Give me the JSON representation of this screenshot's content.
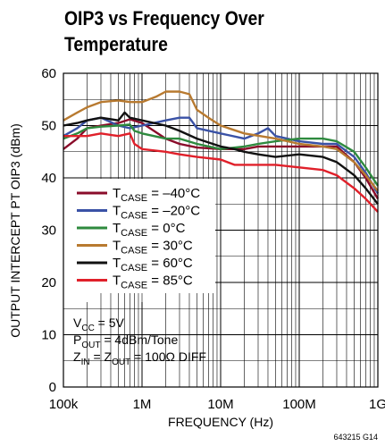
{
  "chart_data": {
    "type": "line",
    "title_lines": [
      "OIP3 vs Frequency Over",
      "Temperature"
    ],
    "xlabel": "FREQUENCY (Hz)",
    "ylabel": "OUTPUT INTERCEPT PT OIP3 (dBm)",
    "xscale": "log",
    "xlim": [
      100000,
      1000000000
    ],
    "ylim": [
      0,
      60
    ],
    "xticks": [
      {
        "value": 100000,
        "label": "100k"
      },
      {
        "value": 1000000,
        "label": "1M"
      },
      {
        "value": 10000000,
        "label": "10M"
      },
      {
        "value": 100000000,
        "label": "100M"
      },
      {
        "value": 1000000000,
        "label": "1G"
      }
    ],
    "yticks": [
      0,
      10,
      20,
      30,
      40,
      50,
      60
    ],
    "grid": true,
    "legend_position": "left",
    "series": [
      {
        "label_main": "T",
        "label_sub": "CASE",
        "label_rest": " = –40°C",
        "color": "#8a0c2a",
        "x": [
          100000,
          150000,
          200000,
          300000,
          500000,
          700000,
          1000000,
          2000000,
          3000000,
          5000000,
          10000000,
          20000000,
          30000000,
          50000000,
          100000000,
          200000000,
          300000000,
          500000000,
          700000000,
          1000000000
        ],
        "y": [
          45.5,
          47.5,
          49.5,
          50.0,
          50.5,
          51.2,
          50.5,
          47.5,
          46.5,
          45.8,
          45.5,
          45.5,
          46.0,
          46.0,
          46.0,
          46.0,
          46.0,
          43.0,
          40.0,
          36.0
        ]
      },
      {
        "label_main": "T",
        "label_sub": "CASE",
        "label_rest": " = –20°C",
        "color": "#3a52a6",
        "x": [
          100000,
          150000,
          200000,
          300000,
          500000,
          700000,
          1000000,
          2000000,
          3000000,
          4000000,
          5000000,
          10000000,
          20000000,
          30000000,
          40000000,
          50000000,
          100000000,
          200000000,
          300000000,
          500000000,
          700000000,
          1000000000
        ],
        "y": [
          48.0,
          49.5,
          51.0,
          51.5,
          50.0,
          49.5,
          50.0,
          51.0,
          51.5,
          51.5,
          49.5,
          48.5,
          47.5,
          48.5,
          49.5,
          48.0,
          47.0,
          46.5,
          46.5,
          44.0,
          41.0,
          37.0
        ]
      },
      {
        "label_main": "T",
        "label_sub": "CASE",
        "label_rest": " = 0°C",
        "color": "#2e8a3e",
        "x": [
          100000,
          150000,
          200000,
          300000,
          500000,
          700000,
          800000,
          1000000,
          2000000,
          3000000,
          5000000,
          10000000,
          20000000,
          30000000,
          50000000,
          100000000,
          200000000,
          300000000,
          500000000,
          700000000,
          1000000000
        ],
        "y": [
          47.5,
          48.5,
          49.5,
          49.8,
          50.0,
          50.2,
          49.0,
          48.5,
          47.5,
          47.5,
          46.5,
          45.5,
          46.0,
          46.5,
          47.0,
          47.5,
          47.5,
          47.0,
          45.0,
          42.0,
          38.5
        ]
      },
      {
        "label_main": "T",
        "label_sub": "CASE",
        "label_rest": " = 30°C",
        "color": "#b87a30",
        "x": [
          100000,
          150000,
          200000,
          300000,
          500000,
          700000,
          1000000,
          1500000,
          2000000,
          3000000,
          4000000,
          5000000,
          7000000,
          10000000,
          20000000,
          50000000,
          100000000,
          200000000,
          300000000,
          500000000,
          700000000,
          1000000000
        ],
        "y": [
          51.0,
          52.5,
          53.5,
          54.5,
          54.8,
          54.5,
          54.5,
          55.5,
          56.5,
          56.5,
          56.0,
          53.0,
          51.5,
          50.0,
          48.5,
          47.5,
          46.5,
          46.0,
          45.5,
          43.0,
          40.5,
          37.5
        ]
      },
      {
        "label_main": "T",
        "label_sub": "CASE",
        "label_rest": " = 60°C",
        "color": "#111111",
        "x": [
          100000,
          150000,
          200000,
          300000,
          500000,
          600000,
          700000,
          1000000,
          2000000,
          3000000,
          5000000,
          10000000,
          15000000,
          20000000,
          30000000,
          50000000,
          100000000,
          200000000,
          300000000,
          500000000,
          700000000,
          1000000000
        ],
        "y": [
          50.0,
          50.5,
          51.0,
          51.5,
          51.0,
          52.5,
          51.5,
          51.0,
          50.0,
          49.0,
          47.5,
          46.0,
          45.5,
          45.0,
          44.5,
          44.0,
          44.5,
          44.0,
          43.0,
          40.5,
          38.0,
          35.0
        ]
      },
      {
        "label_main": "T",
        "label_sub": "CASE",
        "label_rest": " = 85°C",
        "color": "#e0202a",
        "x": [
          100000,
          150000,
          200000,
          300000,
          500000,
          700000,
          800000,
          1000000,
          2000000,
          3000000,
          5000000,
          10000000,
          15000000,
          20000000,
          30000000,
          50000000,
          100000000,
          200000000,
          300000000,
          500000000,
          700000000,
          1000000000
        ],
        "y": [
          48.0,
          48.0,
          48.0,
          48.5,
          48.0,
          48.5,
          46.5,
          45.5,
          45.0,
          44.5,
          44.0,
          43.5,
          42.5,
          42.5,
          42.5,
          42.5,
          42.0,
          41.5,
          40.5,
          38.0,
          36.0,
          33.5
        ]
      }
    ]
  },
  "conditions": [
    {
      "main": "V",
      "sub": "CC",
      "rest": " = 5V"
    },
    {
      "main": "P",
      "sub": "OUT",
      "rest": " = 4dBm/Tone"
    },
    {
      "main": "Z",
      "sub": "IN",
      "rest": " = Z",
      "sub2": "OUT",
      "rest2": " = 100Ω DIFF"
    }
  ],
  "figure_id": "643215 G14"
}
